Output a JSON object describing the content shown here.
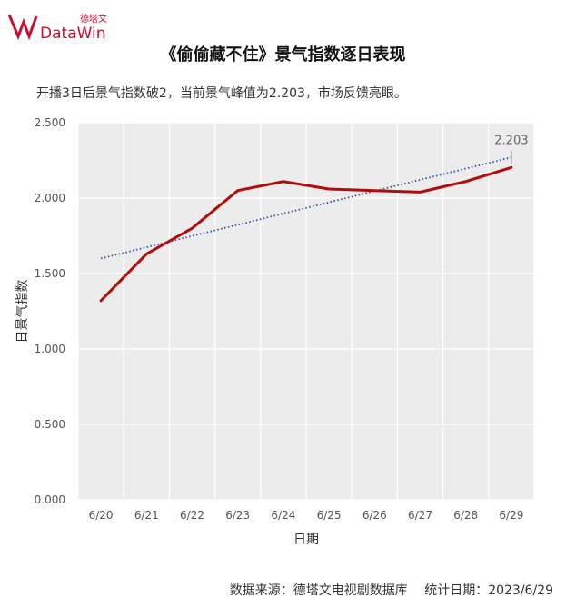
{
  "brand": {
    "logo_cn": "德塔文",
    "logo_en": "DataWin"
  },
  "title": "《偷偷藏不住》景气指数逐日表现",
  "subtitle": "开播3日后景气指数破2，当前景气峰值为2.203，市场反馈亮眼。",
  "footer": {
    "source": "数据来源：德塔文电视剧数据库",
    "date": "统计日期：2023/6/29"
  },
  "chart_data": {
    "type": "line",
    "categories": [
      "6/20",
      "6/21",
      "6/22",
      "6/23",
      "6/24",
      "6/25",
      "6/26",
      "6/27",
      "6/28",
      "6/29"
    ],
    "series": [
      {
        "values": [
          1.32,
          1.63,
          1.8,
          2.05,
          2.11,
          2.06,
          2.05,
          2.04,
          2.11,
          2.203
        ],
        "color": "#b10d0d"
      }
    ],
    "trendline": {
      "start": 1.6,
      "end": 2.27,
      "color": "#2e4fa3"
    },
    "annotation": {
      "text": "2.203",
      "category": "6/29"
    },
    "xlabel": "日期",
    "ylabel": "日景气指数",
    "yticks": [
      "0.000",
      "0.500",
      "1.000",
      "1.500",
      "2.000",
      "2.500"
    ],
    "ylim": [
      0,
      2.5
    ],
    "grid": true,
    "plot_background": "#ececec"
  }
}
